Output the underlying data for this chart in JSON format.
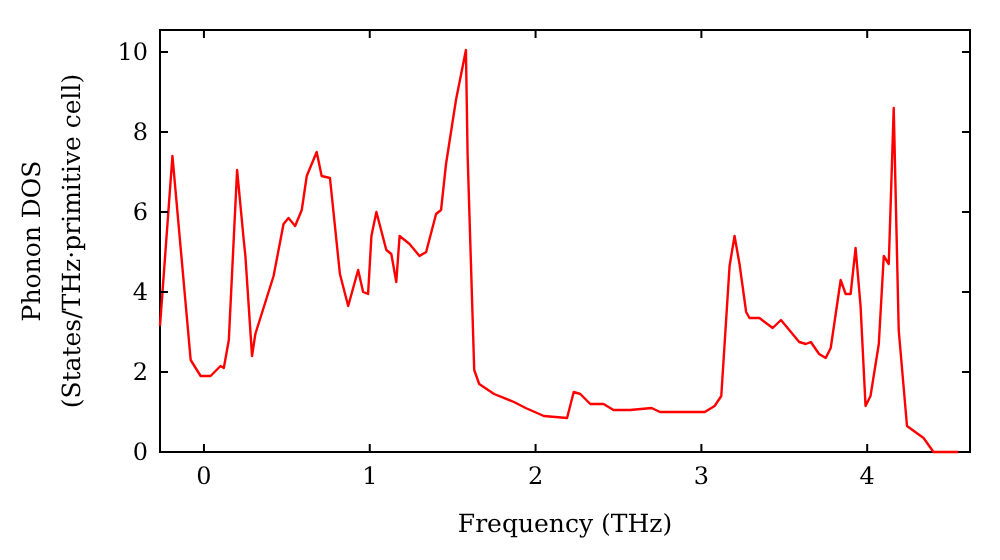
{
  "chart_data": {
    "type": "line",
    "xlabel": "Frequency (THz)",
    "ylabel": "Phonon DOS\n(States/THz·primitive cell)",
    "xlim": [
      -0.265,
      4.62
    ],
    "ylim": [
      0,
      10.55
    ],
    "xticks": [
      0,
      1,
      2,
      3,
      4
    ],
    "yticks": [
      0,
      2,
      4,
      6,
      8,
      10
    ],
    "grid": false,
    "marker": "none",
    "line_style": "solid",
    "series": [
      {
        "color": "#ff0000",
        "x": [
          -0.265,
          -0.19,
          -0.08,
          -0.02,
          0.04,
          0.1,
          0.12,
          0.15,
          0.2,
          0.24,
          0.25,
          0.29,
          0.31,
          0.42,
          0.48,
          0.51,
          0.55,
          0.59,
          0.62,
          0.68,
          0.71,
          0.76,
          0.82,
          0.87,
          0.93,
          0.96,
          0.99,
          1.01,
          1.04,
          1.1,
          1.13,
          1.16,
          1.18,
          1.24,
          1.3,
          1.34,
          1.4,
          1.43,
          1.46,
          1.52,
          1.58,
          1.59,
          1.63,
          1.66,
          1.75,
          1.87,
          1.94,
          2.05,
          2.19,
          2.23,
          2.27,
          2.33,
          2.41,
          2.47,
          2.57,
          2.7,
          2.75,
          2.93,
          3.02,
          3.08,
          3.12,
          3.17,
          3.2,
          3.23,
          3.27,
          3.29,
          3.35,
          3.43,
          3.48,
          3.53,
          3.59,
          3.63,
          3.66,
          3.71,
          3.75,
          3.78,
          3.84,
          3.87,
          3.9,
          3.93,
          3.96,
          3.99,
          4.02,
          4.07,
          4.1,
          4.13,
          4.16,
          4.19,
          4.24,
          4.34,
          4.4,
          4.55
        ],
        "values": [
          3.15,
          7.4,
          2.3,
          1.9,
          1.9,
          2.15,
          2.1,
          2.8,
          7.05,
          5.3,
          4.9,
          2.4,
          2.95,
          4.4,
          5.7,
          5.85,
          5.65,
          6.05,
          6.9,
          7.5,
          6.9,
          6.85,
          4.45,
          3.65,
          4.55,
          4.0,
          3.95,
          5.4,
          6.0,
          5.05,
          4.95,
          4.25,
          5.4,
          5.2,
          4.9,
          5.0,
          5.95,
          6.05,
          7.2,
          8.8,
          10.05,
          7.45,
          2.05,
          1.7,
          1.45,
          1.25,
          1.1,
          0.9,
          0.85,
          1.5,
          1.45,
          1.2,
          1.2,
          1.05,
          1.05,
          1.1,
          1.0,
          1.0,
          1.0,
          1.15,
          1.4,
          4.65,
          5.4,
          4.7,
          3.5,
          3.35,
          3.35,
          3.1,
          3.3,
          3.05,
          2.75,
          2.7,
          2.75,
          2.45,
          2.35,
          2.6,
          4.3,
          3.95,
          3.95,
          5.1,
          3.65,
          1.15,
          1.4,
          2.7,
          4.9,
          4.7,
          8.6,
          3.05,
          0.65,
          0.35,
          0.0,
          0.0
        ]
      }
    ]
  }
}
